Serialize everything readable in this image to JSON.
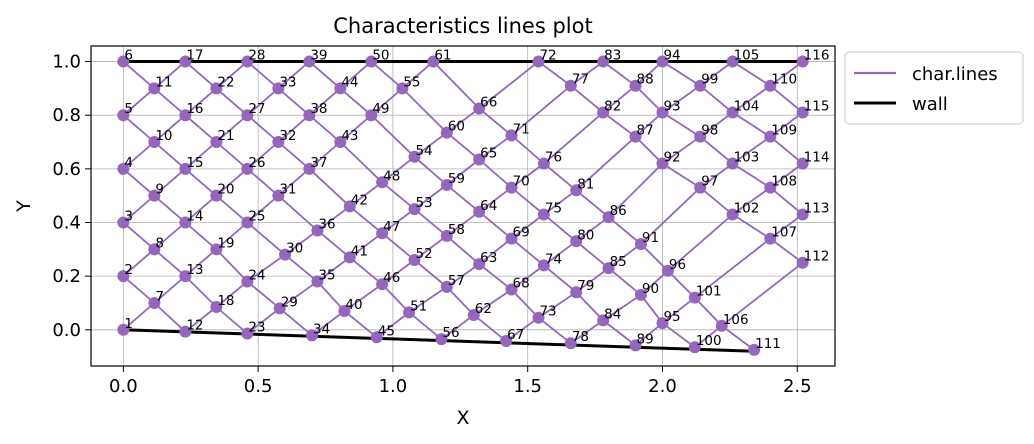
{
  "chart_data": {
    "type": "scatter",
    "title": "Characteristics lines plot",
    "xlabel": "X",
    "ylabel": "Y",
    "xlim": [
      -0.12,
      2.64
    ],
    "ylim": [
      -0.135,
      1.058
    ],
    "xticks": [
      "0.0",
      "0.5",
      "1.0",
      "1.5",
      "2.0",
      "2.5"
    ],
    "xtick_values": [
      0.0,
      0.5,
      1.0,
      1.5,
      2.0,
      2.5
    ],
    "yticks": [
      "0.0",
      "0.2",
      "0.4",
      "0.6",
      "0.8",
      "1.0"
    ],
    "ytick_values": [
      0.0,
      0.2,
      0.4,
      0.6,
      0.8,
      1.0
    ],
    "grid": true,
    "legend_position": "outside-top-right",
    "legend": [
      {
        "label": "char.lines",
        "color": "#9467bd"
      },
      {
        "label": "wall",
        "color": "#000000"
      }
    ],
    "wall": {
      "lower": [
        [
          0.0,
          0.0
        ],
        [
          2.34,
          -0.08
        ]
      ],
      "upper": [
        [
          0.0,
          1.0
        ],
        [
          2.52,
          1.0
        ]
      ]
    },
    "points": [
      {
        "id": "1",
        "x": 0.0,
        "y": 0.0
      },
      {
        "id": "2",
        "x": 0.0,
        "y": 0.2
      },
      {
        "id": "3",
        "x": 0.0,
        "y": 0.4
      },
      {
        "id": "4",
        "x": 0.0,
        "y": 0.6
      },
      {
        "id": "5",
        "x": 0.0,
        "y": 0.8
      },
      {
        "id": "6",
        "x": 0.0,
        "y": 1.0
      },
      {
        "id": "7",
        "x": 0.115,
        "y": 0.1
      },
      {
        "id": "8",
        "x": 0.115,
        "y": 0.3
      },
      {
        "id": "9",
        "x": 0.115,
        "y": 0.5
      },
      {
        "id": "10",
        "x": 0.115,
        "y": 0.7
      },
      {
        "id": "11",
        "x": 0.115,
        "y": 0.9
      },
      {
        "id": "12",
        "x": 0.23,
        "y": -0.007
      },
      {
        "id": "13",
        "x": 0.23,
        "y": 0.2
      },
      {
        "id": "14",
        "x": 0.23,
        "y": 0.4
      },
      {
        "id": "15",
        "x": 0.23,
        "y": 0.6
      },
      {
        "id": "16",
        "x": 0.23,
        "y": 0.8
      },
      {
        "id": "17",
        "x": 0.23,
        "y": 1.0
      },
      {
        "id": "18",
        "x": 0.345,
        "y": 0.085
      },
      {
        "id": "19",
        "x": 0.345,
        "y": 0.3
      },
      {
        "id": "20",
        "x": 0.345,
        "y": 0.5
      },
      {
        "id": "21",
        "x": 0.345,
        "y": 0.7
      },
      {
        "id": "22",
        "x": 0.345,
        "y": 0.9
      },
      {
        "id": "23",
        "x": 0.46,
        "y": -0.014
      },
      {
        "id": "24",
        "x": 0.46,
        "y": 0.18
      },
      {
        "id": "25",
        "x": 0.46,
        "y": 0.4
      },
      {
        "id": "26",
        "x": 0.46,
        "y": 0.6
      },
      {
        "id": "27",
        "x": 0.46,
        "y": 0.8
      },
      {
        "id": "28",
        "x": 0.46,
        "y": 1.0
      },
      {
        "id": "29",
        "x": 0.58,
        "y": 0.08
      },
      {
        "id": "30",
        "x": 0.6,
        "y": 0.28
      },
      {
        "id": "31",
        "x": 0.575,
        "y": 0.5
      },
      {
        "id": "32",
        "x": 0.575,
        "y": 0.7
      },
      {
        "id": "33",
        "x": 0.575,
        "y": 0.9
      },
      {
        "id": "34",
        "x": 0.7,
        "y": -0.021
      },
      {
        "id": "35",
        "x": 0.72,
        "y": 0.18
      },
      {
        "id": "36",
        "x": 0.72,
        "y": 0.37
      },
      {
        "id": "37",
        "x": 0.69,
        "y": 0.6
      },
      {
        "id": "38",
        "x": 0.69,
        "y": 0.8
      },
      {
        "id": "39",
        "x": 0.69,
        "y": 1.0
      },
      {
        "id": "40",
        "x": 0.82,
        "y": 0.07
      },
      {
        "id": "41",
        "x": 0.84,
        "y": 0.27
      },
      {
        "id": "42",
        "x": 0.84,
        "y": 0.46
      },
      {
        "id": "43",
        "x": 0.805,
        "y": 0.7
      },
      {
        "id": "44",
        "x": 0.805,
        "y": 0.9
      },
      {
        "id": "45",
        "x": 0.94,
        "y": -0.028
      },
      {
        "id": "46",
        "x": 0.96,
        "y": 0.17
      },
      {
        "id": "47",
        "x": 0.96,
        "y": 0.36
      },
      {
        "id": "48",
        "x": 0.96,
        "y": 0.55
      },
      {
        "id": "49",
        "x": 0.92,
        "y": 0.8
      },
      {
        "id": "50",
        "x": 0.92,
        "y": 1.0
      },
      {
        "id": "51",
        "x": 1.06,
        "y": 0.065
      },
      {
        "id": "52",
        "x": 1.08,
        "y": 0.26
      },
      {
        "id": "53",
        "x": 1.08,
        "y": 0.45
      },
      {
        "id": "54",
        "x": 1.08,
        "y": 0.645
      },
      {
        "id": "55",
        "x": 1.035,
        "y": 0.9
      },
      {
        "id": "56",
        "x": 1.18,
        "y": -0.035
      },
      {
        "id": "57",
        "x": 1.2,
        "y": 0.16
      },
      {
        "id": "58",
        "x": 1.2,
        "y": 0.35
      },
      {
        "id": "59",
        "x": 1.2,
        "y": 0.54
      },
      {
        "id": "60",
        "x": 1.2,
        "y": 0.735
      },
      {
        "id": "61",
        "x": 1.15,
        "y": 1.0
      },
      {
        "id": "62",
        "x": 1.3,
        "y": 0.055
      },
      {
        "id": "63",
        "x": 1.32,
        "y": 0.245
      },
      {
        "id": "64",
        "x": 1.32,
        "y": 0.44
      },
      {
        "id": "65",
        "x": 1.32,
        "y": 0.635
      },
      {
        "id": "66",
        "x": 1.32,
        "y": 0.825
      },
      {
        "id": "67",
        "x": 1.42,
        "y": -0.042
      },
      {
        "id": "68",
        "x": 1.44,
        "y": 0.15
      },
      {
        "id": "69",
        "x": 1.44,
        "y": 0.34
      },
      {
        "id": "70",
        "x": 1.44,
        "y": 0.53
      },
      {
        "id": "71",
        "x": 1.44,
        "y": 0.725
      },
      {
        "id": "72",
        "x": 1.54,
        "y": 1.0
      },
      {
        "id": "73",
        "x": 1.54,
        "y": 0.045
      },
      {
        "id": "74",
        "x": 1.56,
        "y": 0.24
      },
      {
        "id": "75",
        "x": 1.56,
        "y": 0.43
      },
      {
        "id": "76",
        "x": 1.56,
        "y": 0.62
      },
      {
        "id": "77",
        "x": 1.66,
        "y": 0.91
      },
      {
        "id": "78",
        "x": 1.66,
        "y": -0.05
      },
      {
        "id": "79",
        "x": 1.68,
        "y": 0.14
      },
      {
        "id": "80",
        "x": 1.68,
        "y": 0.33
      },
      {
        "id": "81",
        "x": 1.68,
        "y": 0.52
      },
      {
        "id": "82",
        "x": 1.78,
        "y": 0.81
      },
      {
        "id": "83",
        "x": 1.78,
        "y": 1.0
      },
      {
        "id": "84",
        "x": 1.78,
        "y": 0.035
      },
      {
        "id": "85",
        "x": 1.8,
        "y": 0.23
      },
      {
        "id": "86",
        "x": 1.8,
        "y": 0.42
      },
      {
        "id": "87",
        "x": 1.9,
        "y": 0.72
      },
      {
        "id": "88",
        "x": 1.9,
        "y": 0.91
      },
      {
        "id": "89",
        "x": 1.9,
        "y": -0.058
      },
      {
        "id": "90",
        "x": 1.92,
        "y": 0.13
      },
      {
        "id": "91",
        "x": 1.92,
        "y": 0.32
      },
      {
        "id": "92",
        "x": 2.0,
        "y": 0.62
      },
      {
        "id": "93",
        "x": 2.0,
        "y": 0.81
      },
      {
        "id": "94",
        "x": 2.0,
        "y": 1.0
      },
      {
        "id": "95",
        "x": 2.0,
        "y": 0.025
      },
      {
        "id": "96",
        "x": 2.02,
        "y": 0.22
      },
      {
        "id": "97",
        "x": 2.14,
        "y": 0.53
      },
      {
        "id": "98",
        "x": 2.14,
        "y": 0.72
      },
      {
        "id": "99",
        "x": 2.14,
        "y": 0.91
      },
      {
        "id": "100",
        "x": 2.12,
        "y": -0.065
      },
      {
        "id": "101",
        "x": 2.12,
        "y": 0.12
      },
      {
        "id": "102",
        "x": 2.26,
        "y": 0.43
      },
      {
        "id": "103",
        "x": 2.26,
        "y": 0.62
      },
      {
        "id": "104",
        "x": 2.26,
        "y": 0.81
      },
      {
        "id": "105",
        "x": 2.26,
        "y": 1.0
      },
      {
        "id": "106",
        "x": 2.22,
        "y": 0.015
      },
      {
        "id": "107",
        "x": 2.4,
        "y": 0.34
      },
      {
        "id": "108",
        "x": 2.4,
        "y": 0.53
      },
      {
        "id": "109",
        "x": 2.4,
        "y": 0.72
      },
      {
        "id": "110",
        "x": 2.4,
        "y": 0.91
      },
      {
        "id": "111",
        "x": 2.34,
        "y": -0.075
      },
      {
        "id": "112",
        "x": 2.52,
        "y": 0.25
      },
      {
        "id": "113",
        "x": 2.52,
        "y": 0.43
      },
      {
        "id": "114",
        "x": 2.52,
        "y": 0.62
      },
      {
        "id": "115",
        "x": 2.52,
        "y": 0.81
      },
      {
        "id": "116",
        "x": 2.52,
        "y": 1.0
      }
    ],
    "lines": [
      [
        "1",
        "7",
        "13",
        "19",
        "25",
        "31",
        "37",
        "43",
        "49",
        "55",
        "61"
      ],
      [
        "2",
        "8",
        "14",
        "20",
        "26",
        "32",
        "38",
        "44",
        "50"
      ],
      [
        "3",
        "9",
        "15",
        "21",
        "27",
        "33",
        "39"
      ],
      [
        "4",
        "10",
        "16",
        "22",
        "28"
      ],
      [
        "5",
        "11",
        "17"
      ],
      [
        "12",
        "18",
        "24",
        "30",
        "36",
        "42",
        "48",
        "54",
        "60",
        "66",
        "72"
      ],
      [
        "23",
        "29",
        "35",
        "41",
        "47",
        "53",
        "59",
        "65",
        "71",
        "77",
        "83"
      ],
      [
        "34",
        "40",
        "46",
        "52",
        "58",
        "64",
        "70",
        "76",
        "82",
        "88",
        "94"
      ],
      [
        "45",
        "51",
        "57",
        "63",
        "69",
        "75",
        "81",
        "87",
        "93",
        "99",
        "105"
      ],
      [
        "56",
        "62",
        "68",
        "74",
        "80",
        "86",
        "92",
        "98",
        "104",
        "110",
        "116"
      ],
      [
        "67",
        "73",
        "79",
        "85",
        "91",
        "97",
        "103",
        "109",
        "115"
      ],
      [
        "78",
        "84",
        "90",
        "96",
        "102",
        "108",
        "114"
      ],
      [
        "89",
        "95",
        "101",
        "107",
        "113"
      ],
      [
        "100",
        "106",
        "112"
      ],
      [
        "5",
        "10",
        "15",
        "20",
        "25",
        "30",
        "35",
        "40",
        "45"
      ],
      [
        "6",
        "11",
        "16",
        "21",
        "26",
        "31",
        "36",
        "41",
        "46",
        "51",
        "56"
      ],
      [
        "17",
        "22",
        "27",
        "32",
        "37",
        "42",
        "47",
        "52",
        "57",
        "62",
        "67"
      ],
      [
        "28",
        "33",
        "38",
        "43",
        "48",
        "53",
        "58",
        "63",
        "68",
        "73",
        "78"
      ],
      [
        "39",
        "44",
        "49",
        "54",
        "59",
        "64",
        "69",
        "74",
        "79",
        "84",
        "89"
      ],
      [
        "50",
        "55",
        "60",
        "65",
        "70",
        "75",
        "80",
        "85",
        "90",
        "95",
        "100"
      ],
      [
        "61",
        "66",
        "71",
        "76",
        "81",
        "86",
        "91",
        "96",
        "101",
        "106",
        "111"
      ],
      [
        "4",
        "9",
        "14",
        "19",
        "24",
        "29",
        "34"
      ],
      [
        "3",
        "8",
        "13",
        "18",
        "23"
      ],
      [
        "2",
        "7",
        "12"
      ],
      [
        "72",
        "77",
        "82",
        "87",
        "92",
        "97",
        "102",
        "107",
        "112"
      ],
      [
        "83",
        "88",
        "93",
        "98",
        "103",
        "108",
        "113"
      ],
      [
        "94",
        "99",
        "104",
        "109",
        "114"
      ],
      [
        "105",
        "110",
        "115"
      ]
    ]
  }
}
